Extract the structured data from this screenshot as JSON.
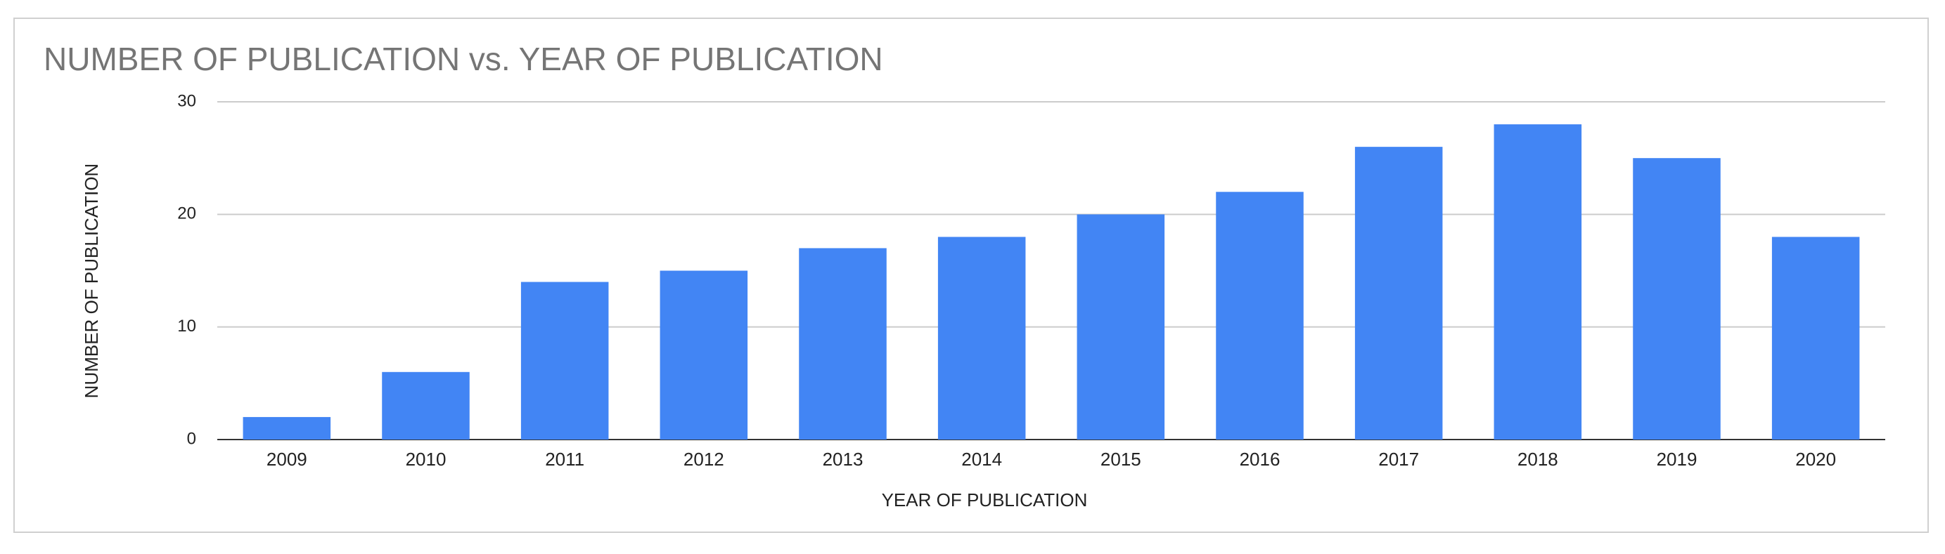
{
  "chart_data": {
    "type": "bar",
    "title": "NUMBER OF PUBLICATION vs. YEAR OF PUBLICATION",
    "x_label": "YEAR OF PUBLICATION",
    "y_label": "NUMBER OF PUBLICATION",
    "categories": [
      "2009",
      "2010",
      "2011",
      "2012",
      "2013",
      "2014",
      "2015",
      "2016",
      "2017",
      "2018",
      "2019",
      "2020"
    ],
    "values": [
      2,
      6,
      14,
      15,
      17,
      18,
      20,
      22,
      26,
      28,
      25,
      18
    ],
    "color": "#4285f4",
    "ylim": [
      0,
      30
    ],
    "yticks": [
      0,
      10,
      20,
      30
    ],
    "grid": true
  }
}
